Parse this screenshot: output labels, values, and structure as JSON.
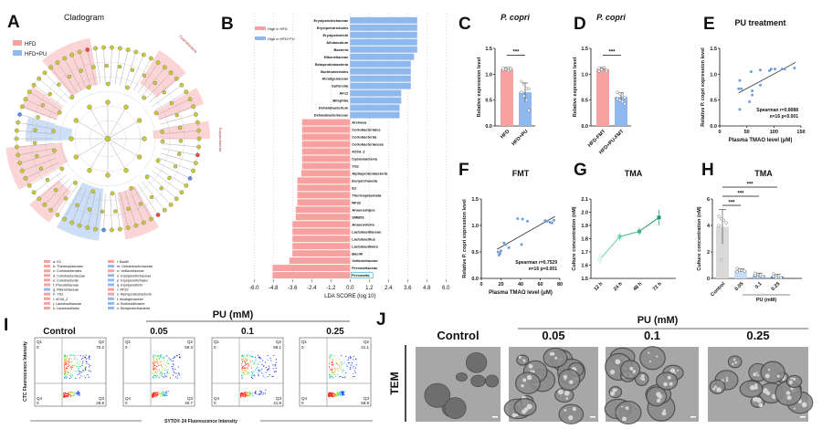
{
  "colors": {
    "hfd": "#f7a1a1",
    "hfd_pu": "#8fb8ee",
    "scatter": "#6f9fd8",
    "line_g": "#36b37e",
    "control_bar": "#d9d9d9",
    "pu_bar_light": "#c7dcf7",
    "pu_bar_dark": "#3d7fd6"
  },
  "panels": {
    "A": "A",
    "B": "B",
    "C": "C",
    "D": "D",
    "E": "E",
    "F": "F",
    "G": "G",
    "H": "H",
    "I": "I",
    "J": "J"
  },
  "panel_a": {
    "title": "Cladogram",
    "legend": [
      "HFD",
      "HFD+PU"
    ],
    "outer_labels": [
      "Cyanobacteria",
      "Euryarchaeota"
    ],
    "key": [
      {
        "label": "a: E2",
        "group": "HFD"
      },
      {
        "label": "b: Thermoplasmata",
        "group": "HFD"
      },
      {
        "label": "c: Coriobacteriales",
        "group": "HFD"
      },
      {
        "label": "d: Coriobacteriaceae",
        "group": "HFD"
      },
      {
        "label": "e: Coriobacteriia",
        "group": "HFD"
      },
      {
        "label": "f: Prevotellaceae",
        "group": "HFD"
      },
      {
        "label": "g: Rikenellaceae",
        "group": "HFD+PU"
      },
      {
        "label": "h: YS2",
        "group": "HFD"
      },
      {
        "label": "i: 4C0d_2",
        "group": "HFD"
      },
      {
        "label": "j: Lactobacillaceae",
        "group": "HFD"
      },
      {
        "label": "k: Lactobacillales",
        "group": "HFD"
      },
      {
        "label": "l: Bacilli",
        "group": "HFD"
      },
      {
        "label": "m: Dehalobacteriaceae",
        "group": "HFD+PU"
      },
      {
        "label": "n: Veillonellaceae",
        "group": "HFD"
      },
      {
        "label": "o: Erysipelotrichaceae",
        "group": "HFD+PU"
      },
      {
        "label": "p: Erysipelotrichales",
        "group": "HFD+PU"
      },
      {
        "label": "q: Erysipelotrichi",
        "group": "HFD+PU"
      },
      {
        "label": "r: RF32",
        "group": "HFD"
      },
      {
        "label": "s: Alphaproteobacteria",
        "group": "HFD"
      },
      {
        "label": "t: Alcaligenaceae",
        "group": "HFD+PU"
      },
      {
        "label": "u: Burkholderiales",
        "group": "HFD+PU"
      },
      {
        "label": "v: Betaproteobacteria",
        "group": "HFD+PU"
      }
    ]
  },
  "chart_data": [
    {
      "panel": "B",
      "type": "bar",
      "orientation": "horizontal",
      "legend": [
        "High in HFD",
        "High in HFD+PU"
      ],
      "xlabel": "LDA SCORE (log 10)",
      "xlim": [
        -6,
        6
      ],
      "xticks": [
        "-6.0",
        "-4.8",
        "-3.6",
        "-2.4",
        "-1.2",
        "0.0",
        "1.2",
        "2.4",
        "3.6",
        "4.8",
        "6.0"
      ],
      "grid": true,
      "categories": [
        "Erysipelotrichaceae",
        "Erysipelotrichales",
        "Erysipelotrichi",
        "Allobaculum",
        "Bacteria",
        "Rikenellaceae",
        "Betaproteobacteria",
        "Burkholderiales",
        "Alcaligenaceae",
        "Sutterella",
        "AF12",
        "Bilophila",
        "Dehalobacterium",
        "Dehalobacteriaceae",
        "Archaea",
        "Coriobacteriales",
        "Coriobacteriia",
        "Coriobacteriaceae",
        "4C0d_2",
        "Cyanobacteria",
        "YS2",
        "Alphaproteobacteria",
        "Euryarchaeota",
        "E2",
        "Thermoplasmata",
        "RF32",
        "Anaerostipes",
        "SMB53",
        "Anaerovibrio",
        "Lactobacillaceae",
        "Lactobacillus",
        "Lactobacillales",
        "Bacilli",
        "Veillonellaceae",
        "Prevotellaceae",
        "Prevotella"
      ],
      "values": [
        4.2,
        4.2,
        4.2,
        4.2,
        4.2,
        4.0,
        3.8,
        3.8,
        3.8,
        3.8,
        3.2,
        3.2,
        3.1,
        3.1,
        -3.0,
        -3.0,
        -3.0,
        -3.0,
        -3.0,
        -3.0,
        -3.0,
        -3.05,
        -3.3,
        -3.3,
        -3.3,
        -3.3,
        -3.4,
        -3.4,
        -3.6,
        -3.6,
        -3.6,
        -3.6,
        -3.6,
        -3.8,
        -4.85,
        -4.85
      ],
      "highlighted": "Prevotella"
    },
    {
      "panel": "C",
      "type": "bar",
      "title": "P. copri",
      "ylabel": "Relative expression level",
      "ylim": [
        0,
        1.5
      ],
      "yticks": [
        "0.0",
        "0.5",
        "1.0",
        "1.5"
      ],
      "categories": [
        "HFD",
        "HFD+PU"
      ],
      "values": [
        1.1,
        0.65
      ],
      "errors": [
        0.03,
        0.18
      ],
      "points": [
        [
          1.08,
          1.1,
          1.12,
          1.09,
          1.11,
          1.1,
          1.07,
          1.12
        ],
        [
          0.86,
          0.8,
          0.72,
          0.72,
          0.65,
          0.58,
          0.5,
          0.3
        ]
      ],
      "significance": "***"
    },
    {
      "panel": "D",
      "type": "bar",
      "title": "P. copri",
      "ylabel": "Relative expression level",
      "ylim": [
        0,
        1.5
      ],
      "yticks": [
        "0.0",
        "0.5",
        "1.0",
        "1.5"
      ],
      "categories": [
        "HFD-FMT",
        "HFD+PU-FMT"
      ],
      "values": [
        1.1,
        0.56
      ],
      "errors": [
        0.03,
        0.08
      ],
      "points": [
        [
          1.06,
          1.1,
          1.12,
          1.08,
          1.11,
          1.09,
          1.13,
          1.05
        ],
        [
          0.65,
          0.62,
          0.6,
          0.55,
          0.52,
          0.5,
          0.47,
          0.43
        ]
      ],
      "significance": "***"
    },
    {
      "panel": "E",
      "type": "scatter",
      "title": "PU treatment",
      "xlabel": "Plasma TMAO level (μM)",
      "ylabel": "Relative P. copri expression level",
      "xlim": [
        0,
        150
      ],
      "ylim": [
        0,
        1.5
      ],
      "xticks": [
        "0",
        "50",
        "100",
        "150"
      ],
      "yticks": [
        "0.0",
        "0.5",
        "1.0",
        "1.5"
      ],
      "x": [
        35,
        37,
        37,
        40,
        55,
        58,
        60,
        60,
        75,
        75,
        92,
        95,
        102,
        115,
        120,
        138
      ],
      "y": [
        0.72,
        0.88,
        0.32,
        0.72,
        0.47,
        1.05,
        0.6,
        0.68,
        1.08,
        0.79,
        1.07,
        1.1,
        1.1,
        1.1,
        1.1,
        1.12
      ],
      "fit": [
        [
          35,
          0.64
        ],
        [
          140,
          1.23
        ]
      ],
      "annotation": [
        "Spearman r=0.8088",
        "n=16   p<0.001"
      ]
    },
    {
      "panel": "F",
      "type": "scatter",
      "title": "FMT",
      "xlabel": "Plasma TMAO level (μM)",
      "ylabel": "Relative P. copri expression level",
      "xlim": [
        0,
        80
      ],
      "ylim": [
        0,
        1.5
      ],
      "xticks": [
        "0",
        "20",
        "40",
        "60",
        "80"
      ],
      "yticks": [
        "0.0",
        "0.5",
        "1.0",
        "1.5"
      ],
      "x": [
        17,
        18,
        19,
        20,
        23,
        25,
        28,
        37,
        42,
        41,
        47,
        65,
        67,
        70,
        72,
        74
      ],
      "y": [
        0.5,
        0.44,
        0.47,
        0.52,
        0.67,
        0.64,
        0.58,
        1.13,
        1.12,
        0.64,
        1.08,
        1.09,
        1.08,
        1.06,
        1.05,
        1.1
      ],
      "fit": [
        [
          16,
          0.55
        ],
        [
          75,
          1.17
        ]
      ],
      "annotation": [
        "Spearman r=0.7529",
        "n=16   p=0.001"
      ]
    },
    {
      "panel": "G",
      "type": "line",
      "title": "TMA",
      "ylabel": "Culture concentration (nM)",
      "ylim": [
        1.5,
        2.1
      ],
      "yticks": [
        "1.5",
        "1.6",
        "1.7",
        "1.8",
        "1.9",
        "2.0",
        "2.1"
      ],
      "categories": [
        "12 h",
        "24 h",
        "48 h",
        "72 h"
      ],
      "values": [
        1.645,
        1.815,
        1.855,
        1.96
      ],
      "errors": [
        0.04,
        0.03,
        0.03,
        0.06
      ]
    },
    {
      "panel": "H",
      "type": "bar",
      "title": "TMA",
      "ylabel": "Culture concentration (nM)",
      "xlabel": "PU (mM)",
      "ylim": [
        0,
        6
      ],
      "yticks": [
        "0",
        "2",
        "4",
        "6"
      ],
      "categories": [
        "Control",
        "0.05",
        "0.1",
        "0.25"
      ],
      "values": [
        3.9,
        0.6,
        0.25,
        0.15
      ],
      "errors": [
        1.3,
        0.12,
        0.15,
        0.15
      ],
      "points": [
        [
          4.7,
          4.5,
          4.4,
          4.2,
          4.0,
          1.4
        ],
        [
          0.75,
          0.68,
          0.6,
          0.55,
          0.5,
          0.62
        ],
        [
          0.4,
          0.3,
          0.2,
          0.15,
          0.25,
          0.1
        ],
        [
          0.35,
          0.2,
          0.1,
          0.05,
          0.15,
          0.08
        ]
      ],
      "significance": [
        "***",
        "***",
        "***"
      ]
    }
  ],
  "panel_i": {
    "group_label": "PU (mM)",
    "ylabel": "CTC Fluorescence Intensity",
    "xlabel": "SYTO® 24 Fluorescence Intensity",
    "plots": [
      {
        "title": "Control",
        "q1": "0",
        "q2": "70.2",
        "q3": "29.8",
        "q4": "0"
      },
      {
        "title": "0.05",
        "q1": "0",
        "q2": "59.3",
        "q3": "40.7",
        "q4": "0"
      },
      {
        "title": "0.1",
        "q1": "0",
        "q2": "58.1",
        "q3": "41.9",
        "q4": "0"
      },
      {
        "title": "0.25",
        "q1": "0",
        "q2": "41.1",
        "q3": "58.9",
        "q4": "0"
      }
    ],
    "quadrant_names": [
      "Q1",
      "Q2",
      "Q3",
      "Q4"
    ]
  },
  "panel_j": {
    "group_label": "PU (mM)",
    "row_label": "TEM",
    "images": [
      "Control",
      "0.05",
      "0.1",
      "0.25"
    ]
  }
}
